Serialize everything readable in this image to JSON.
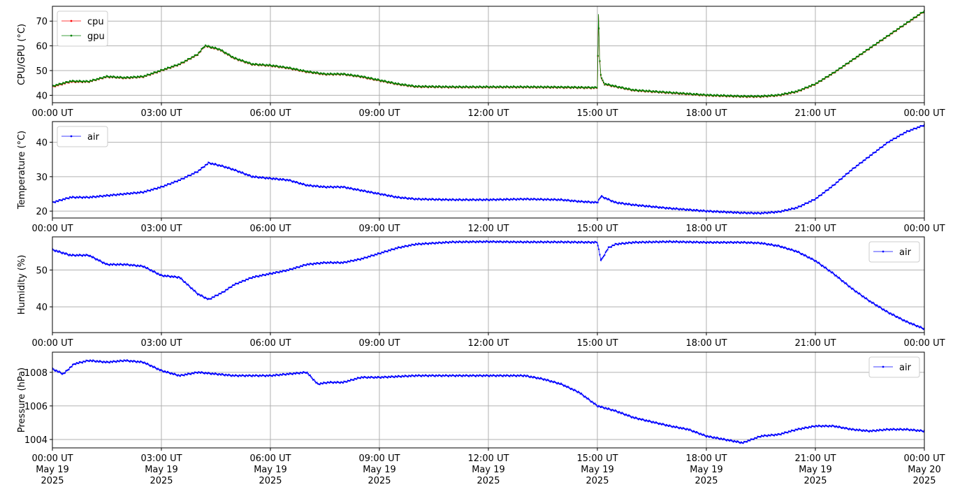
{
  "chart_data": [
    {
      "type": "line",
      "ylabel": "CPU/GPU (°C)",
      "xlim": [
        0,
        24
      ],
      "ylim": [
        37,
        76
      ],
      "yticks": [
        40,
        50,
        60,
        70
      ],
      "xticklabels": [
        "00:00 UT",
        "03:00 UT",
        "06:00 UT",
        "09:00 UT",
        "12:00 UT",
        "15:00 UT",
        "18:00 UT",
        "21:00 UT",
        "00:00 UT"
      ],
      "grid": true,
      "legend": "top-left",
      "series": [
        {
          "name": "cpu",
          "color": "#ff0000",
          "x": [
            0,
            0.5,
            1.0,
            1.5,
            2.0,
            2.5,
            3.0,
            3.5,
            4.0,
            4.2,
            4.6,
            5.0,
            5.5,
            6.0,
            6.5,
            7.0,
            7.5,
            8.0,
            8.5,
            9.0,
            9.5,
            10.0,
            11.0,
            12.0,
            13.0,
            14.0,
            15.0,
            15.03,
            15.06,
            15.1,
            15.2,
            15.5,
            16.0,
            17.0,
            18.0,
            19.0,
            19.5,
            20.0,
            20.5,
            21.0,
            21.5,
            22.0,
            22.5,
            23.0,
            23.5,
            24.0
          ],
          "y": [
            43.5,
            45.5,
            45.5,
            47.5,
            47.0,
            47.5,
            50.0,
            52.5,
            56.5,
            60.0,
            58.5,
            55.0,
            52.5,
            52.0,
            51.0,
            49.5,
            48.5,
            48.5,
            47.5,
            46.0,
            44.5,
            43.5,
            43.3,
            43.3,
            43.3,
            43.2,
            43.0,
            72.5,
            55.0,
            47.0,
            44.5,
            43.5,
            42.0,
            41.0,
            40.0,
            39.5,
            39.5,
            40.0,
            41.5,
            44.5,
            49.0,
            54.0,
            59.0,
            64.0,
            69.0,
            74.0
          ]
        },
        {
          "name": "gpu",
          "color": "#008000",
          "x": [
            0,
            0.5,
            1.0,
            1.5,
            2.0,
            2.5,
            3.0,
            3.5,
            4.0,
            4.2,
            4.6,
            5.0,
            5.5,
            6.0,
            6.5,
            7.0,
            7.5,
            8.0,
            8.5,
            9.0,
            9.5,
            10.0,
            11.0,
            12.0,
            13.0,
            14.0,
            15.0,
            15.03,
            15.06,
            15.1,
            15.2,
            15.5,
            16.0,
            17.0,
            18.0,
            19.0,
            19.5,
            20.0,
            20.5,
            21.0,
            21.5,
            22.0,
            22.5,
            23.0,
            23.5,
            24.0
          ],
          "y": [
            43.7,
            45.7,
            45.6,
            47.6,
            47.1,
            47.6,
            50.1,
            52.6,
            56.6,
            60.1,
            58.6,
            55.1,
            52.6,
            52.1,
            51.1,
            49.6,
            48.6,
            48.6,
            47.6,
            46.1,
            44.6,
            43.6,
            43.4,
            43.4,
            43.4,
            43.3,
            43.1,
            72.8,
            55.2,
            47.2,
            44.6,
            43.6,
            42.1,
            41.1,
            40.1,
            39.6,
            39.6,
            40.1,
            41.6,
            44.6,
            49.1,
            54.1,
            59.1,
            64.1,
            69.1,
            74.1
          ]
        }
      ]
    },
    {
      "type": "line",
      "ylabel": "Temperature (°C)",
      "xlim": [
        0,
        24
      ],
      "ylim": [
        18,
        46
      ],
      "yticks": [
        20,
        30,
        40
      ],
      "xticklabels": [
        "00:00 UT",
        "03:00 UT",
        "06:00 UT",
        "09:00 UT",
        "12:00 UT",
        "15:00 UT",
        "18:00 UT",
        "21:00 UT",
        "00:00 UT"
      ],
      "grid": true,
      "legend": "top-left",
      "series": [
        {
          "name": "air",
          "color": "#0000ff",
          "x": [
            0,
            0.5,
            1.0,
            1.5,
            2.0,
            2.5,
            3.0,
            3.5,
            4.0,
            4.3,
            4.7,
            5.0,
            5.5,
            6.0,
            6.5,
            7.0,
            7.5,
            8.0,
            8.5,
            9.0,
            9.5,
            10.0,
            11.0,
            12.0,
            13.0,
            14.0,
            14.5,
            15.0,
            15.1,
            15.5,
            16.0,
            17.0,
            18.0,
            19.0,
            19.5,
            20.0,
            20.5,
            21.0,
            21.5,
            22.0,
            22.5,
            23.0,
            23.5,
            24.0
          ],
          "y": [
            22.5,
            24.0,
            24.0,
            24.5,
            25.0,
            25.5,
            27.0,
            29.0,
            31.5,
            34.0,
            33.0,
            32.0,
            30.0,
            29.5,
            29.0,
            27.5,
            27.0,
            27.0,
            26.0,
            25.0,
            24.0,
            23.5,
            23.3,
            23.3,
            23.5,
            23.3,
            22.8,
            22.5,
            24.3,
            22.5,
            21.8,
            20.8,
            20.0,
            19.5,
            19.4,
            19.8,
            21.0,
            23.5,
            27.5,
            32.0,
            36.0,
            40.0,
            43.0,
            45.0
          ]
        }
      ]
    },
    {
      "type": "line",
      "ylabel": "Humidity (%)",
      "xlim": [
        0,
        24
      ],
      "ylim": [
        33,
        59
      ],
      "yticks": [
        40,
        50
      ],
      "xticklabels": [
        "00:00 UT",
        "03:00 UT",
        "06:00 UT",
        "09:00 UT",
        "12:00 UT",
        "15:00 UT",
        "18:00 UT",
        "21:00 UT",
        "00:00 UT"
      ],
      "grid": true,
      "legend": "top-right",
      "series": [
        {
          "name": "air",
          "color": "#0000ff",
          "x": [
            0,
            0.5,
            1.0,
            1.5,
            2.0,
            2.5,
            3.0,
            3.5,
            4.0,
            4.3,
            4.7,
            5.0,
            5.5,
            6.0,
            6.5,
            7.0,
            7.5,
            8.0,
            8.5,
            9.0,
            9.5,
            10.0,
            11.0,
            12.0,
            13.0,
            14.0,
            15.0,
            15.1,
            15.3,
            15.5,
            16.0,
            17.0,
            18.0,
            19.0,
            19.5,
            20.0,
            20.5,
            21.0,
            21.5,
            22.0,
            22.5,
            23.0,
            23.5,
            24.0
          ],
          "y": [
            55.5,
            54.0,
            54.0,
            51.5,
            51.5,
            51.0,
            48.5,
            48.0,
            43.5,
            42.0,
            44.0,
            46.0,
            48.0,
            49.0,
            50.0,
            51.5,
            52.0,
            52.0,
            53.0,
            54.5,
            56.0,
            57.0,
            57.6,
            57.7,
            57.6,
            57.6,
            57.5,
            52.5,
            56.0,
            57.0,
            57.5,
            57.7,
            57.5,
            57.5,
            57.3,
            56.5,
            55.0,
            52.5,
            49.0,
            45.0,
            41.5,
            38.5,
            36.0,
            34.0
          ]
        }
      ]
    },
    {
      "type": "line",
      "ylabel": "Pressure (hPa)",
      "xlim": [
        0,
        24
      ],
      "ylim": [
        1003.5,
        1009.2
      ],
      "yticks": [
        1004,
        1006,
        1008
      ],
      "xticklabels": [
        "00:00 UT\nMay 19\n2025",
        "03:00 UT\nMay 19\n2025",
        "06:00 UT\nMay 19\n2025",
        "09:00 UT\nMay 19\n2025",
        "12:00 UT\nMay 19\n2025",
        "15:00 UT\nMay 19\n2025",
        "18:00 UT\nMay 19\n2025",
        "21:00 UT\nMay 19\n2025",
        "00:00 UT\nMay 20\n2025"
      ],
      "grid": true,
      "legend": "top-right",
      "series": [
        {
          "name": "air",
          "color": "#0000ff",
          "x": [
            0,
            0.3,
            0.6,
            1.0,
            1.5,
            2.0,
            2.5,
            3.0,
            3.5,
            4.0,
            5.0,
            6.0,
            7.0,
            7.3,
            7.6,
            8.0,
            8.5,
            9.0,
            10.0,
            11.0,
            12.0,
            13.0,
            13.5,
            14.0,
            14.5,
            15.0,
            15.5,
            16.0,
            17.0,
            17.5,
            18.0,
            18.5,
            19.0,
            19.5,
            20.0,
            20.5,
            21.0,
            21.5,
            22.0,
            22.5,
            23.0,
            23.5,
            24.0
          ],
          "y": [
            1008.2,
            1007.9,
            1008.5,
            1008.7,
            1008.6,
            1008.7,
            1008.6,
            1008.1,
            1007.8,
            1008.0,
            1007.8,
            1007.8,
            1008.0,
            1007.3,
            1007.4,
            1007.4,
            1007.7,
            1007.7,
            1007.8,
            1007.8,
            1007.8,
            1007.8,
            1007.6,
            1007.3,
            1006.8,
            1006.0,
            1005.7,
            1005.3,
            1004.8,
            1004.6,
            1004.2,
            1004.0,
            1003.8,
            1004.2,
            1004.3,
            1004.6,
            1004.8,
            1004.8,
            1004.6,
            1004.5,
            1004.6,
            1004.6,
            1004.5
          ]
        }
      ]
    }
  ]
}
